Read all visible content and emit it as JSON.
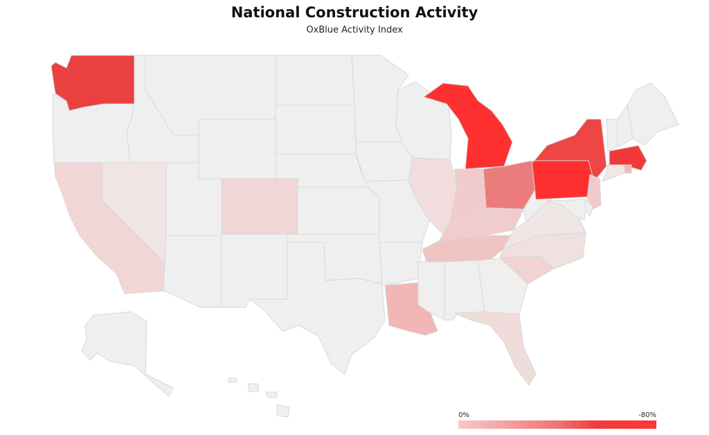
{
  "title": "National Construction Activity",
  "subtitle": "OxBlue Activity Index",
  "legend": {
    "min_label": "0%",
    "max_label": "-80%"
  },
  "colors": {
    "base": "#efefef",
    "border": "#d8d8d8",
    "scale_low": "#f5c9c9",
    "scale_high": "#ff3535"
  },
  "states": [
    {
      "id": "WA",
      "name": "Washington",
      "fill": "#ea4040"
    },
    {
      "id": "OR",
      "name": "Oregon",
      "fill": "#efefef"
    },
    {
      "id": "CA",
      "name": "California",
      "fill": "#f1d6d6"
    },
    {
      "id": "NV",
      "name": "Nevada",
      "fill": "#f0e5e5"
    },
    {
      "id": "ID",
      "name": "Idaho",
      "fill": "#efefef"
    },
    {
      "id": "MT",
      "name": "Montana",
      "fill": "#efefef"
    },
    {
      "id": "WY",
      "name": "Wyoming",
      "fill": "#efefef"
    },
    {
      "id": "UT",
      "name": "Utah",
      "fill": "#efefef"
    },
    {
      "id": "AZ",
      "name": "Arizona",
      "fill": "#efefef"
    },
    {
      "id": "CO",
      "name": "Colorado",
      "fill": "#f0d6d6"
    },
    {
      "id": "NM",
      "name": "New Mexico",
      "fill": "#efefef"
    },
    {
      "id": "ND",
      "name": "North Dakota",
      "fill": "#efefef"
    },
    {
      "id": "SD",
      "name": "South Dakota",
      "fill": "#efefef"
    },
    {
      "id": "NE",
      "name": "Nebraska",
      "fill": "#efefef"
    },
    {
      "id": "KS",
      "name": "Kansas",
      "fill": "#efefef"
    },
    {
      "id": "OK",
      "name": "Oklahoma",
      "fill": "#efefef"
    },
    {
      "id": "TX",
      "name": "Texas",
      "fill": "#efefef"
    },
    {
      "id": "MN",
      "name": "Minnesota",
      "fill": "#efefef"
    },
    {
      "id": "IA",
      "name": "Iowa",
      "fill": "#efefef"
    },
    {
      "id": "MO",
      "name": "Missouri",
      "fill": "#efefef"
    },
    {
      "id": "AR",
      "name": "Arkansas",
      "fill": "#efefef"
    },
    {
      "id": "LA",
      "name": "Louisiana",
      "fill": "#f2b6b6"
    },
    {
      "id": "WI",
      "name": "Wisconsin",
      "fill": "#efefef"
    },
    {
      "id": "IL",
      "name": "Illinois",
      "fill": "#f1dddd"
    },
    {
      "id": "MI",
      "name": "Michigan",
      "fill": "#ff3030"
    },
    {
      "id": "IN",
      "name": "Indiana",
      "fill": "#f1cbcb"
    },
    {
      "id": "OH",
      "name": "Ohio",
      "fill": "#ec7c7c"
    },
    {
      "id": "KY",
      "name": "Kentucky",
      "fill": "#f1cccc"
    },
    {
      "id": "TN",
      "name": "Tennessee",
      "fill": "#f1c4c4"
    },
    {
      "id": "MS",
      "name": "Mississippi",
      "fill": "#efefef"
    },
    {
      "id": "AL",
      "name": "Alabama",
      "fill": "#efefef"
    },
    {
      "id": "GA",
      "name": "Georgia",
      "fill": "#efefef"
    },
    {
      "id": "FL",
      "name": "Florida",
      "fill": "#f1dcdc"
    },
    {
      "id": "SC",
      "name": "South Carolina",
      "fill": "#f1d3d3"
    },
    {
      "id": "NC",
      "name": "North Carolina",
      "fill": "#f1e0e0"
    },
    {
      "id": "VA",
      "name": "Virginia",
      "fill": "#f0e6e6"
    },
    {
      "id": "WV",
      "name": "West Virginia",
      "fill": "#efefef"
    },
    {
      "id": "PA",
      "name": "Pennsylvania",
      "fill": "#ff3030"
    },
    {
      "id": "NY",
      "name": "New York",
      "fill": "#ee4545"
    },
    {
      "id": "VT",
      "name": "Vermont",
      "fill": "#efefef"
    },
    {
      "id": "NH",
      "name": "New Hampshire",
      "fill": "#efefef"
    },
    {
      "id": "ME",
      "name": "Maine",
      "fill": "#efefef"
    },
    {
      "id": "MA",
      "name": "Massachusetts",
      "fill": "#f03a3a"
    },
    {
      "id": "RI",
      "name": "Rhode Island",
      "fill": "#f1b8b8"
    },
    {
      "id": "CT",
      "name": "Connecticut",
      "fill": "#f3e6e6"
    },
    {
      "id": "NJ",
      "name": "New Jersey",
      "fill": "#f1caca"
    },
    {
      "id": "DE",
      "name": "Delaware",
      "fill": "#efefef"
    },
    {
      "id": "MD",
      "name": "Maryland",
      "fill": "#efefef"
    },
    {
      "id": "AK",
      "name": "Alaska",
      "fill": "#efefef"
    },
    {
      "id": "HI",
      "name": "Hawaii",
      "fill": "#efefef"
    }
  ]
}
